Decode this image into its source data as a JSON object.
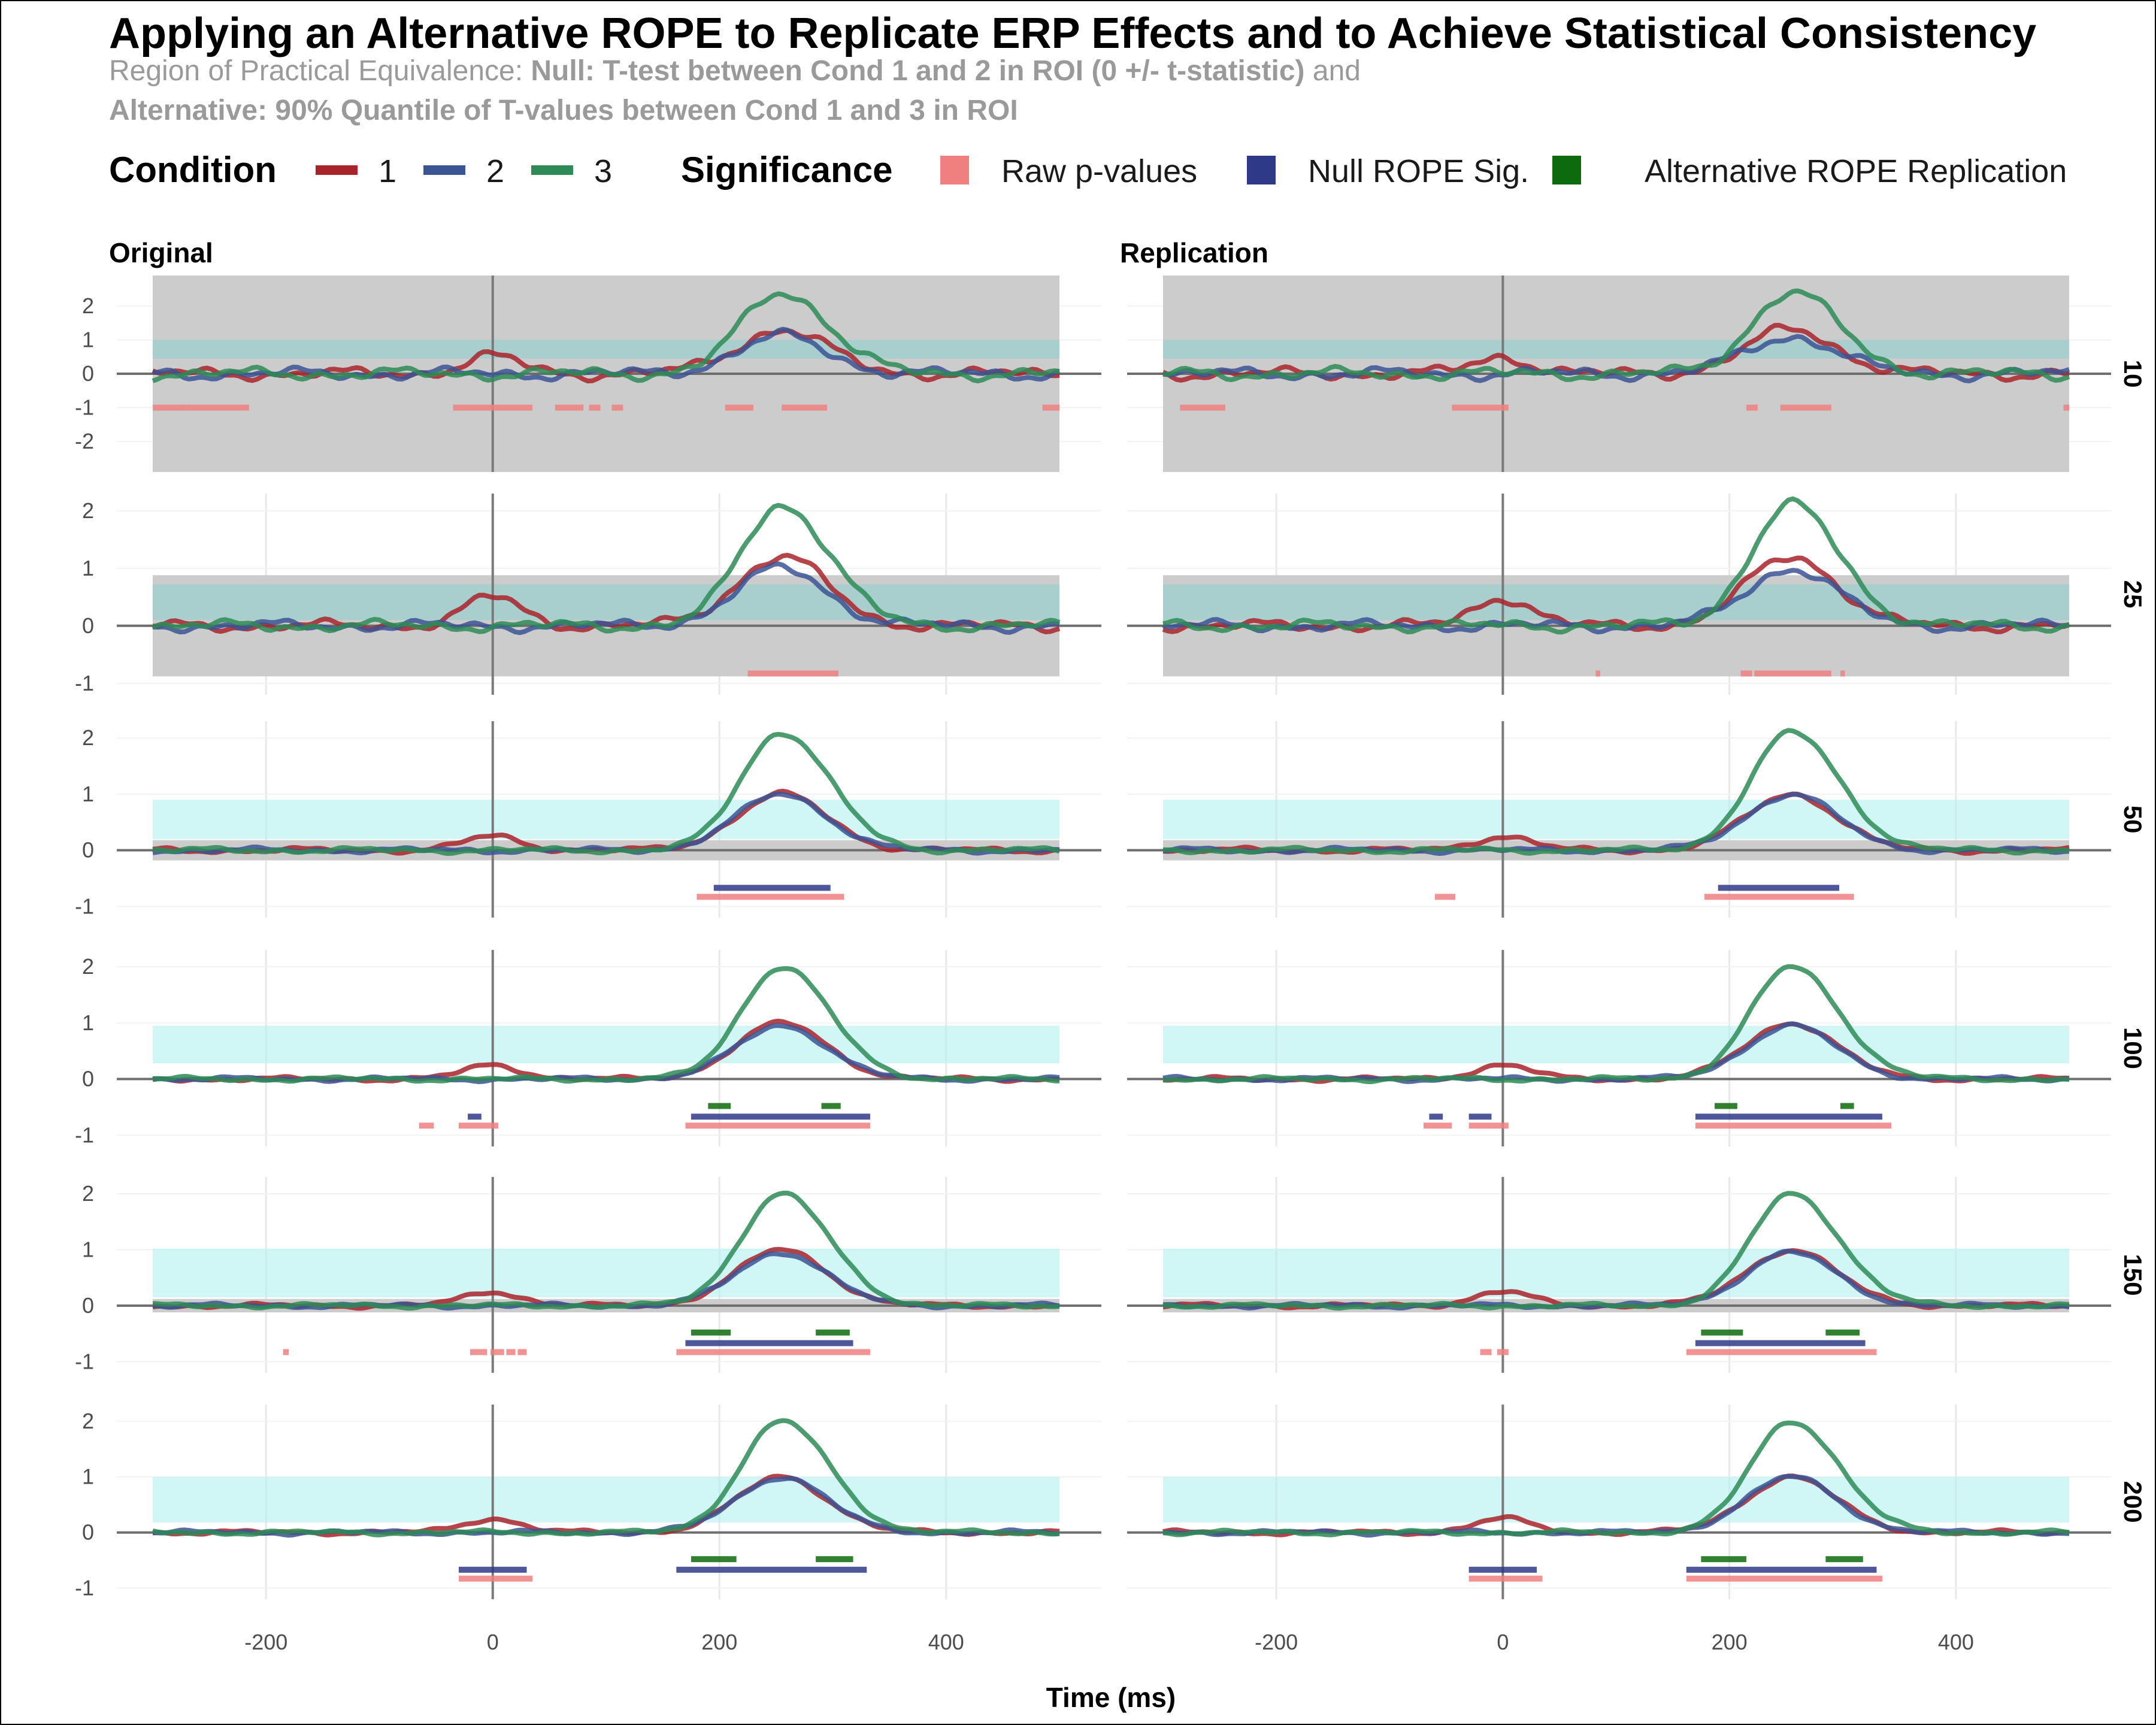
{
  "chart_data": {
    "type": "line",
    "title": "Applying an Alternative ROPE to Replicate ERP Effects and to Achieve Statistical Consistency",
    "subtitle_line1_prefix": "Region of Practical Equivalence: ",
    "subtitle_line1_bold": "Null: T-test between Cond 1 and 2 in ROI (0 +/- t-statistic)",
    "subtitle_line1_suffix": " and",
    "subtitle_line2_bold": "Alternative: 90% Quantile of T-values between Cond 1 and 3 in ROI",
    "xlabel": "Time (ms)",
    "ylabel": "",
    "xlim": [
      -300,
      500
    ],
    "x_ticks": [
      -200,
      0,
      200,
      400
    ],
    "grid": true,
    "legend_position": "top",
    "legend": {
      "condition_title": "Condition",
      "conditions": [
        {
          "label": "1",
          "color": "#a8242a"
        },
        {
          "label": "2",
          "color": "#3b5494"
        },
        {
          "label": "3",
          "color": "#2e8b57"
        }
      ],
      "significance_title": "Significance",
      "significance": [
        {
          "label": "Raw p-values",
          "color": "#f08080"
        },
        {
          "label": "Null ROPE Sig.",
          "color": "#2e3a87"
        },
        {
          "label": "Alternative ROPE Replication",
          "color": "#0d6b0d"
        }
      ]
    },
    "colors": {
      "null_rope": "#cccccc",
      "alt_rope": "#b3f0f0",
      "raw_p": "#f08080",
      "null_sig": "#2e3a87",
      "alt_rep": "#0d6b0d"
    },
    "columns": [
      "Original",
      "Replication"
    ],
    "rows": [
      {
        "label": "10",
        "ylim": [
          -2.9,
          2.9
        ],
        "y_ticks": [
          -2,
          -1,
          0,
          1,
          2
        ],
        "null_rope": [
          -2.95,
          2.95
        ],
        "alt_rope": [
          0.45,
          1.0
        ],
        "c3_peak": 2.4,
        "c1_peak": 1.3,
        "c2_peak": 1.1,
        "noise": 0.22,
        "orig": {
          "raw_p": [
            [
              -300,
              -270
            ],
            [
              -270,
              -215
            ],
            [
              -35,
              35
            ],
            [
              55,
              80
            ],
            [
              85,
              95
            ],
            [
              105,
              115
            ],
            [
              205,
              230
            ],
            [
              255,
              295
            ],
            [
              485,
              500
            ]
          ],
          "null_sig": [],
          "alt_rep": []
        },
        "repl": {
          "raw_p": [
            [
              -285,
              -245
            ],
            [
              -45,
              5
            ],
            [
              215,
              225
            ],
            [
              245,
              290
            ],
            [
              495,
              500
            ]
          ],
          "null_sig": [],
          "alt_rep": []
        }
      },
      {
        "label": "25",
        "ylim": [
          -1.2,
          2.3
        ],
        "y_ticks": [
          -1,
          0,
          1,
          2
        ],
        "null_rope": [
          -0.88,
          0.88
        ],
        "alt_rope": [
          0.1,
          0.72
        ],
        "c3_peak": 2.1,
        "c1_peak": 1.2,
        "c2_peak": 1.0,
        "noise": 0.12,
        "orig": {
          "raw_p": [
            [
              225,
              295
            ],
            [
              295,
              305
            ]
          ],
          "null_sig": [],
          "alt_rep": []
        },
        "repl": {
          "raw_p": [
            [
              82,
              86
            ],
            [
              210,
              220
            ],
            [
              222,
              290
            ],
            [
              298,
              302
            ]
          ],
          "null_sig": [],
          "alt_rep": []
        }
      },
      {
        "label": "50",
        "ylim": [
          -1.2,
          2.3
        ],
        "y_ticks": [
          -1,
          0,
          1,
          2
        ],
        "null_rope": [
          -0.18,
          0.18
        ],
        "alt_rope": [
          0.2,
          0.9
        ],
        "c3_peak": 2.1,
        "c1_peak": 1.0,
        "c2_peak": 1.0,
        "noise": 0.06,
        "orig": {
          "raw_p": [
            [
              180,
              310
            ]
          ],
          "null_sig": [
            [
              195,
              298
            ]
          ],
          "alt_rep": []
        },
        "repl": {
          "raw_p": [
            [
              -60,
              -42
            ],
            [
              178,
              310
            ]
          ],
          "null_sig": [
            [
              190,
              297
            ]
          ],
          "alt_rep": []
        }
      },
      {
        "label": "100",
        "ylim": [
          -1.2,
          2.3
        ],
        "y_ticks": [
          -1,
          0,
          1,
          2
        ],
        "null_rope": [
          0,
          0
        ],
        "alt_rope": [
          0.28,
          0.95
        ],
        "c3_peak": 2.0,
        "c1_peak": 1.0,
        "c2_peak": 0.95,
        "noise": 0.05,
        "orig": {
          "raw_p": [
            [
              -65,
              -52
            ],
            [
              -30,
              5
            ],
            [
              170,
              333
            ]
          ],
          "null_sig": [
            [
              -22,
              -10
            ],
            [
              175,
              333
            ]
          ],
          "alt_rep": [
            [
              190,
              210
            ],
            [
              290,
              307
            ]
          ]
        },
        "repl": {
          "raw_p": [
            [
              -70,
              -45
            ],
            [
              -30,
              5
            ],
            [
              170,
              343
            ]
          ],
          "null_sig": [
            [
              -65,
              -53
            ],
            [
              -30,
              -10
            ],
            [
              170,
              335
            ]
          ],
          "alt_rep": [
            [
              187,
              207
            ],
            [
              298,
              310
            ]
          ]
        }
      },
      {
        "label": "150",
        "ylim": [
          -1.2,
          2.3
        ],
        "y_ticks": [
          -1,
          0,
          1,
          2
        ],
        "null_rope": [
          -0.12,
          0.12
        ],
        "alt_rope": [
          0.15,
          1.02
        ],
        "c3_peak": 2.0,
        "c1_peak": 1.0,
        "c2_peak": 0.95,
        "noise": 0.05,
        "orig": {
          "raw_p": [
            [
              -185,
              -180
            ],
            [
              -20,
              -5
            ],
            [
              -2,
              10
            ],
            [
              12,
              20
            ],
            [
              22,
              30
            ],
            [
              162,
              333
            ]
          ],
          "null_sig": [
            [
              170,
              318
            ]
          ],
          "alt_rep": [
            [
              175,
              210
            ],
            [
              285,
              315
            ]
          ]
        },
        "repl": {
          "raw_p": [
            [
              -20,
              -10
            ],
            [
              -5,
              5
            ],
            [
              162,
              330
            ]
          ],
          "null_sig": [
            [
              170,
              320
            ]
          ],
          "alt_rep": [
            [
              175,
              212
            ],
            [
              285,
              315
            ]
          ]
        }
      },
      {
        "label": "200",
        "ylim": [
          -1.2,
          2.3
        ],
        "y_ticks": [
          -1,
          0,
          1,
          2
        ],
        "null_rope": [
          0,
          0
        ],
        "alt_rope": [
          0.18,
          1.0
        ],
        "c3_peak": 2.0,
        "c1_peak": 1.0,
        "c2_peak": 1.0,
        "noise": 0.05,
        "orig": {
          "raw_p": [
            [
              -30,
              35
            ]
          ],
          "null_sig": [
            [
              -30,
              30
            ],
            [
              162,
              330
            ]
          ],
          "alt_rep": [
            [
              175,
              215
            ],
            [
              285,
              318
            ]
          ]
        },
        "repl": {
          "raw_p": [
            [
              -30,
              35
            ],
            [
              162,
              335
            ]
          ],
          "null_sig": [
            [
              -30,
              30
            ],
            [
              162,
              330
            ]
          ],
          "alt_rep": [
            [
              175,
              215
            ],
            [
              285,
              318
            ]
          ]
        }
      }
    ]
  }
}
